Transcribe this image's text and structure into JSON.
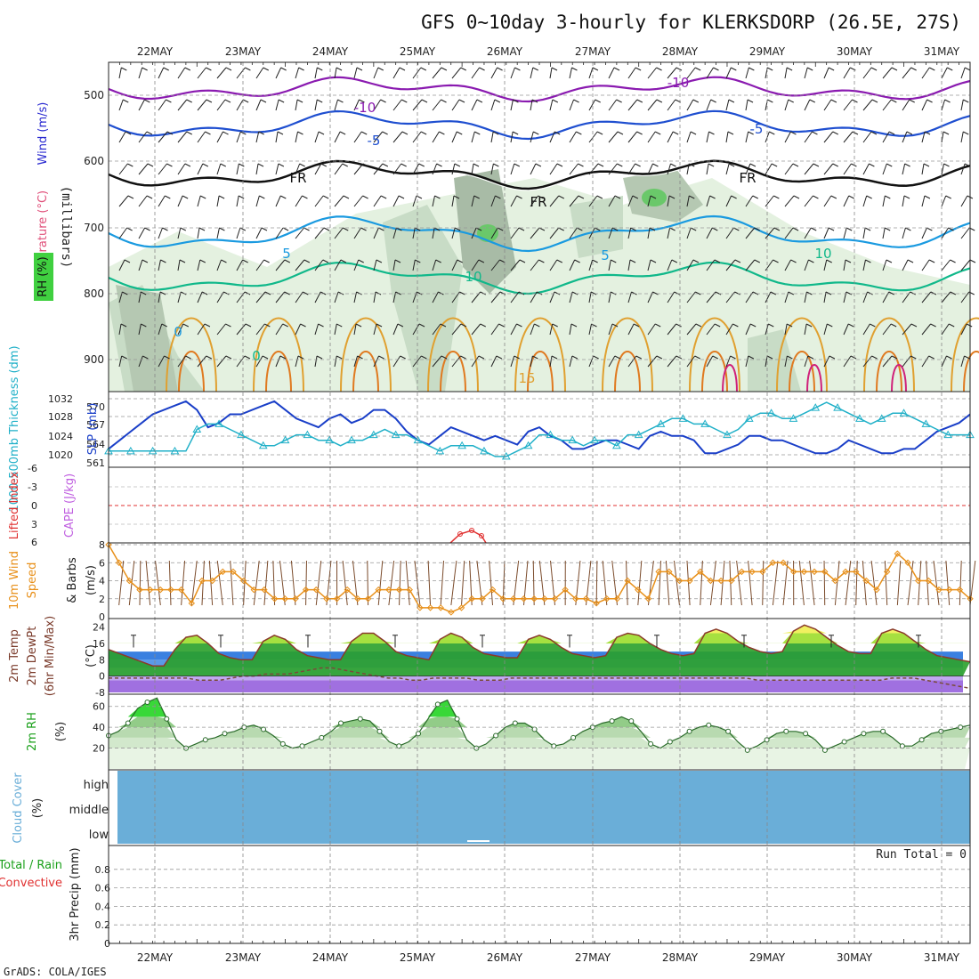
{
  "title": "GFS 0~10day 3-hourly for KLERKSDORP (26.5E, 27S)",
  "footer": "GrADS: COLA/IGES",
  "dates": [
    "22MAY",
    "23MAY",
    "24MAY",
    "25MAY",
    "26MAY",
    "27MAY",
    "28MAY",
    "29MAY",
    "30MAY",
    "31MAY"
  ],
  "colors": {
    "temp_label": "#e0507a",
    "wind_label": "#2a2ad0",
    "thickness": "#20b0c8",
    "slp": "#1a3fc8",
    "lifted_index": "#e03030",
    "cape": "#c060e0",
    "wind10": "#e8901a",
    "temp2m": "#3a7a20",
    "rh2m": "#1aa01a",
    "cloud": "#6aaed8",
    "precip_total": "#1aa01a",
    "precip_conv": "#e03030"
  },
  "panels": {
    "upper": {
      "ylabel_temp": "Temperature (°C)",
      "ylabel_wind": "Wind (m/s)",
      "ylabel_mb": "(millibars)",
      "ylabel_rh": "RH (%)",
      "yticks": [
        "500",
        "600",
        "700",
        "800",
        "900"
      ],
      "contour_labels": [
        "-10",
        "-10",
        "-5",
        "-5",
        "FR",
        "FR",
        "FR",
        "5",
        "5",
        "10",
        "10",
        "15",
        "0",
        "0"
      ]
    },
    "slp": {
      "ylabel_thick": "1000-500mb Thickness (dm)",
      "ylabel_slp": "SLP (mb)",
      "left_ticks": [
        "570",
        "567",
        "564",
        "561"
      ],
      "right_ticks": [
        "1032",
        "1028",
        "1024",
        "1020"
      ]
    },
    "cape": {
      "ylabel_li": "Lifted Index",
      "ylabel_cape": "CAPE (J/kg)",
      "ticks": [
        "-6",
        "-3",
        "0",
        "3",
        "6"
      ]
    },
    "wind10": {
      "ylabel1": "10m Wind",
      "ylabel2": "Speed",
      "ylabel3": "& Barbs",
      "ylabel4": "(m/s)",
      "ticks": [
        "8",
        "6",
        "4",
        "2",
        "0"
      ]
    },
    "temp2m": {
      "ylabel1": "2m Temp",
      "ylabel2": "2m DewPt",
      "ylabel3": "(6hr Min/Max)",
      "ylabel4": "(°C)",
      "ticks": [
        "24",
        "16",
        "8",
        "0",
        "-8"
      ]
    },
    "rh2m": {
      "ylabel1": "2m RH",
      "ylabel2": "(%)",
      "ticks": [
        "60",
        "40",
        "20"
      ]
    },
    "cloud": {
      "ylabel1": "Cloud Cover",
      "ylabel2": "(%)",
      "levels": [
        "high",
        "middle",
        "low"
      ]
    },
    "precip": {
      "ylabel_total": "Total / Rain",
      "ylabel_conv": "Convective",
      "ylabel_units": "3hr Precip (mm)",
      "run_total": "Run Total = 0",
      "ticks": [
        "0.8",
        "0.6",
        "0.4",
        "0.2",
        "0"
      ]
    }
  },
  "chart_data": [
    {
      "type": "line",
      "title": "1000-500mb Thickness (dm) / SLP (mb)",
      "x": "3-hourly steps 0..78 (21 May 12Z → 31 May 06Z approx.)",
      "series": [
        {
          "name": "SLP (mb)",
          "axis": "right",
          "ylim": [
            1018,
            1033
          ],
          "values": [
            1021,
            1023,
            1025,
            1027,
            1029,
            1030,
            1031,
            1032,
            1030,
            1026,
            1027,
            1029,
            1029,
            1030,
            1031,
            1032,
            1030,
            1028,
            1027,
            1026,
            1028,
            1029,
            1027,
            1028,
            1030,
            1030,
            1028,
            1025,
            1023,
            1022,
            1024,
            1026,
            1025,
            1024,
            1023,
            1024,
            1023,
            1022,
            1025,
            1026,
            1024,
            1023,
            1021,
            1021,
            1022,
            1023,
            1023,
            1022,
            1021,
            1024,
            1025,
            1024,
            1024,
            1023,
            1020,
            1020,
            1021,
            1022,
            1024,
            1024,
            1023,
            1023,
            1022,
            1021,
            1020,
            1020,
            1021,
            1023,
            1022,
            1021,
            1020,
            1020,
            1021,
            1021,
            1023,
            1025,
            1026,
            1027,
            1029
          ]
        },
        {
          "name": "1000-500mb Thickness (dm)",
          "axis": "left",
          "ylim": [
            560,
            572
          ],
          "values": [
            562,
            562,
            562,
            562,
            562,
            562,
            562,
            562,
            566,
            567,
            567,
            566,
            565,
            564,
            563,
            563,
            564,
            565,
            565,
            564,
            564,
            563,
            564,
            564,
            565,
            566,
            565,
            565,
            564,
            563,
            562,
            563,
            563,
            563,
            562,
            561,
            561,
            562,
            563,
            565,
            565,
            564,
            564,
            563,
            564,
            564,
            563,
            565,
            565,
            566,
            567,
            568,
            568,
            567,
            567,
            566,
            565,
            566,
            568,
            569,
            569,
            568,
            568,
            569,
            570,
            571,
            570,
            569,
            568,
            567,
            568,
            569,
            569,
            568,
            567,
            566,
            565,
            565,
            565
          ]
        }
      ]
    },
    {
      "type": "line",
      "title": "10m Wind Speed (m/s)",
      "ylim": [
        0,
        8
      ],
      "values": [
        8,
        6,
        4,
        3,
        3,
        3,
        3,
        3,
        1.5,
        4,
        4,
        5,
        5,
        4,
        3,
        3,
        2,
        2,
        2,
        3,
        3,
        2,
        2,
        3,
        2,
        2,
        3,
        3,
        3,
        3,
        1,
        1,
        1,
        0.5,
        1,
        2,
        2,
        3,
        2,
        2,
        2,
        2,
        2,
        2,
        3,
        2,
        2,
        1.5,
        2,
        2,
        4,
        3,
        2,
        5,
        5,
        4,
        4,
        5,
        4,
        4,
        4,
        5,
        5,
        5,
        6,
        6,
        5,
        5,
        5,
        5,
        4,
        5,
        5,
        4,
        3,
        5,
        7,
        6,
        4,
        4,
        3,
        3,
        3,
        2
      ]
    },
    {
      "type": "area",
      "title": "2m Temp / DewPt (°C)",
      "ylim": [
        -8,
        26
      ],
      "series": [
        {
          "name": "2m Temp",
          "values": [
            13,
            11,
            9,
            7,
            5,
            5,
            13,
            19,
            20,
            16,
            11,
            9,
            8,
            8,
            17,
            20,
            18,
            13,
            10,
            9,
            8,
            8,
            17,
            21,
            21,
            17,
            12,
            10,
            9,
            8,
            18,
            21,
            19,
            14,
            11,
            10,
            9,
            9,
            18,
            20,
            18,
            14,
            11,
            10,
            9,
            10,
            19,
            21,
            20,
            16,
            13,
            11,
            10,
            11,
            21,
            23,
            21,
            17,
            14,
            12,
            11,
            12,
            22,
            25,
            23,
            19,
            15,
            12,
            11,
            11,
            21,
            23,
            21,
            17,
            13,
            10,
            9,
            8,
            7
          ]
        },
        {
          "name": "2m DewPt",
          "values": [
            -1,
            -1,
            -1,
            -1,
            -1,
            -1,
            -1,
            -1,
            -2,
            -2,
            -2,
            -1,
            0,
            0,
            1,
            1,
            1,
            2,
            3,
            4,
            4,
            3,
            2,
            1,
            0,
            -1,
            -1,
            -2,
            -2,
            -1,
            -1,
            -1,
            -1,
            -2,
            -2,
            -2,
            -1,
            -1,
            -1,
            -1,
            -1,
            -1,
            -1,
            -1,
            -1,
            -1,
            -1,
            -1,
            -1,
            -1,
            -1,
            -1,
            -1,
            -1,
            -1,
            -1,
            -1,
            -1,
            -2,
            -2,
            -2,
            -2,
            -2,
            -2,
            -2,
            -2,
            -2,
            -2,
            -2,
            -2,
            -1,
            -1,
            -1,
            -2,
            -3,
            -4,
            -5,
            -6
          ]
        }
      ]
    },
    {
      "type": "area",
      "title": "2m RH (%)",
      "ylim": [
        0,
        70
      ],
      "values": [
        32,
        36,
        44,
        58,
        64,
        68,
        48,
        28,
        20,
        24,
        28,
        30,
        34,
        36,
        40,
        42,
        38,
        32,
        24,
        20,
        22,
        26,
        30,
        36,
        44,
        46,
        48,
        46,
        36,
        26,
        22,
        26,
        34,
        48,
        62,
        66,
        48,
        28,
        20,
        24,
        32,
        40,
        44,
        44,
        38,
        28,
        22,
        24,
        30,
        36,
        40,
        44,
        46,
        50,
        46,
        36,
        24,
        20,
        26,
        30,
        36,
        40,
        42,
        40,
        36,
        26,
        18,
        22,
        28,
        34,
        36,
        36,
        34,
        28,
        18,
        22,
        26,
        30,
        34,
        36,
        36,
        30,
        22,
        22,
        28,
        34,
        36,
        38,
        40,
        42
      ]
    },
    {
      "type": "bar",
      "title": "3hr Precip (mm)",
      "ylim": [
        0,
        1
      ],
      "values": [],
      "run_total": "Run Total = 0"
    }
  ]
}
